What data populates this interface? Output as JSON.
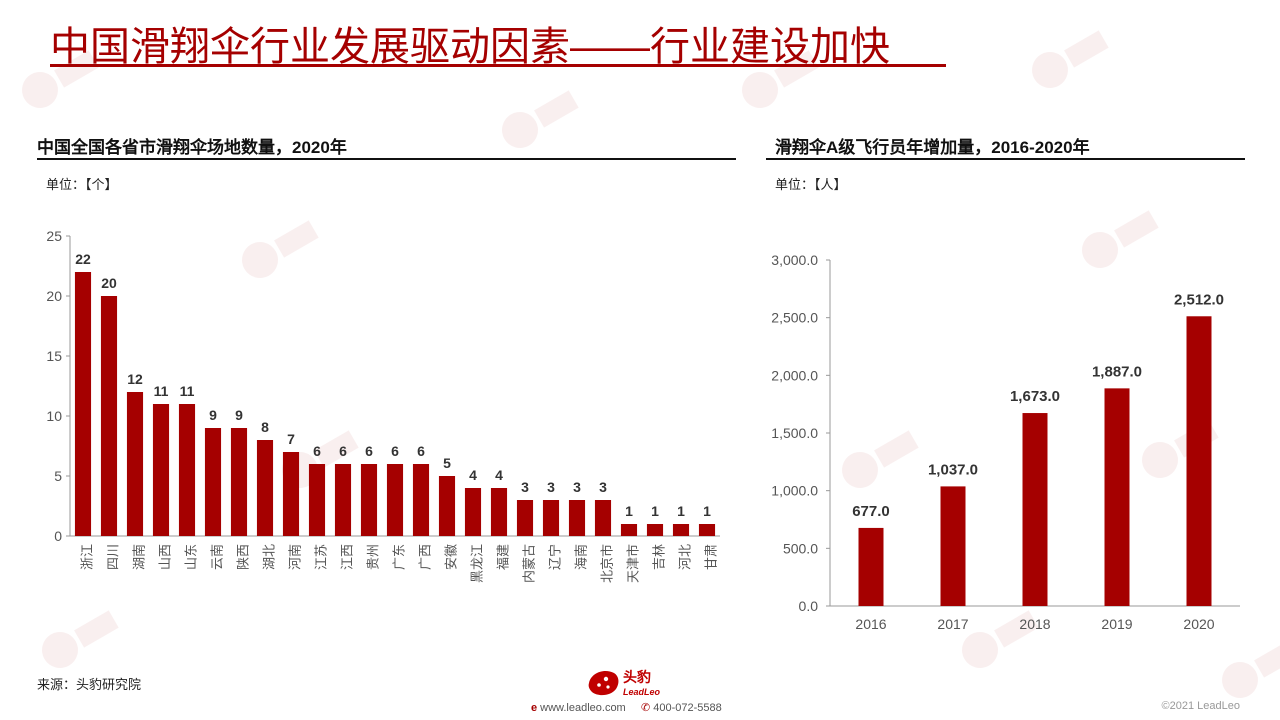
{
  "page": {
    "title": "中国滑翔伞行业发展驱动因素——行业建设加快",
    "source": "来源：头豹研究院",
    "brand_name": "头豹",
    "brand_sub": "LeadLeo",
    "website": "www.leadleo.com",
    "phone": "400-072-5588",
    "copyright": "©2021 LeadLeo",
    "accent_color": "#a50000"
  },
  "left_panel": {
    "title": "中国全国各省市滑翔伞场地数量，2020年",
    "unit": "单位：【个】"
  },
  "right_panel": {
    "title": "滑翔伞A级飞行员年增加量，2016-2020年",
    "unit": "单位：【人】"
  },
  "chart_data": [
    {
      "type": "bar",
      "title": "中国全国各省市滑翔伞场地数量，2020年",
      "unit": "单位：【个】",
      "categories": [
        "浙江",
        "四川",
        "湖南",
        "山西",
        "山东",
        "云南",
        "陕西",
        "湖北",
        "河南",
        "江苏",
        "江西",
        "贵州",
        "广东",
        "广西",
        "安徽",
        "黑龙江",
        "福建",
        "内蒙古",
        "辽宁",
        "海南",
        "北京市",
        "天津市",
        "吉林",
        "河北",
        "甘肃"
      ],
      "values": [
        22,
        20,
        12,
        11,
        11,
        9,
        9,
        8,
        7,
        6,
        6,
        6,
        6,
        6,
        5,
        4,
        4,
        3,
        3,
        3,
        3,
        1,
        1,
        1,
        1
      ],
      "ylim": [
        0,
        25
      ],
      "yticks": [
        0,
        5,
        10,
        15,
        20,
        25
      ],
      "bar_color": "#a50000",
      "data_labels": true,
      "grid": false
    },
    {
      "type": "bar",
      "title": "滑翔伞A级飞行员年增加量，2016-2020年",
      "unit": "单位：【人】",
      "categories": [
        "2016",
        "2017",
        "2018",
        "2019",
        "2020"
      ],
      "values": [
        677.0,
        1037.0,
        1673.0,
        1887.0,
        2512.0
      ],
      "value_labels": [
        "677.0",
        "1,037.0",
        "1,673.0",
        "1,887.0",
        "2,512.0"
      ],
      "ylim": [
        0,
        3000
      ],
      "yticks": [
        0,
        500,
        1000,
        1500,
        2000,
        2500,
        3000
      ],
      "ytick_labels": [
        "0.0",
        "500.0",
        "1,000.0",
        "1,500.0",
        "2,000.0",
        "2,500.0",
        "3,000.0"
      ],
      "bar_color": "#a50000",
      "data_labels": true,
      "grid": false
    }
  ]
}
